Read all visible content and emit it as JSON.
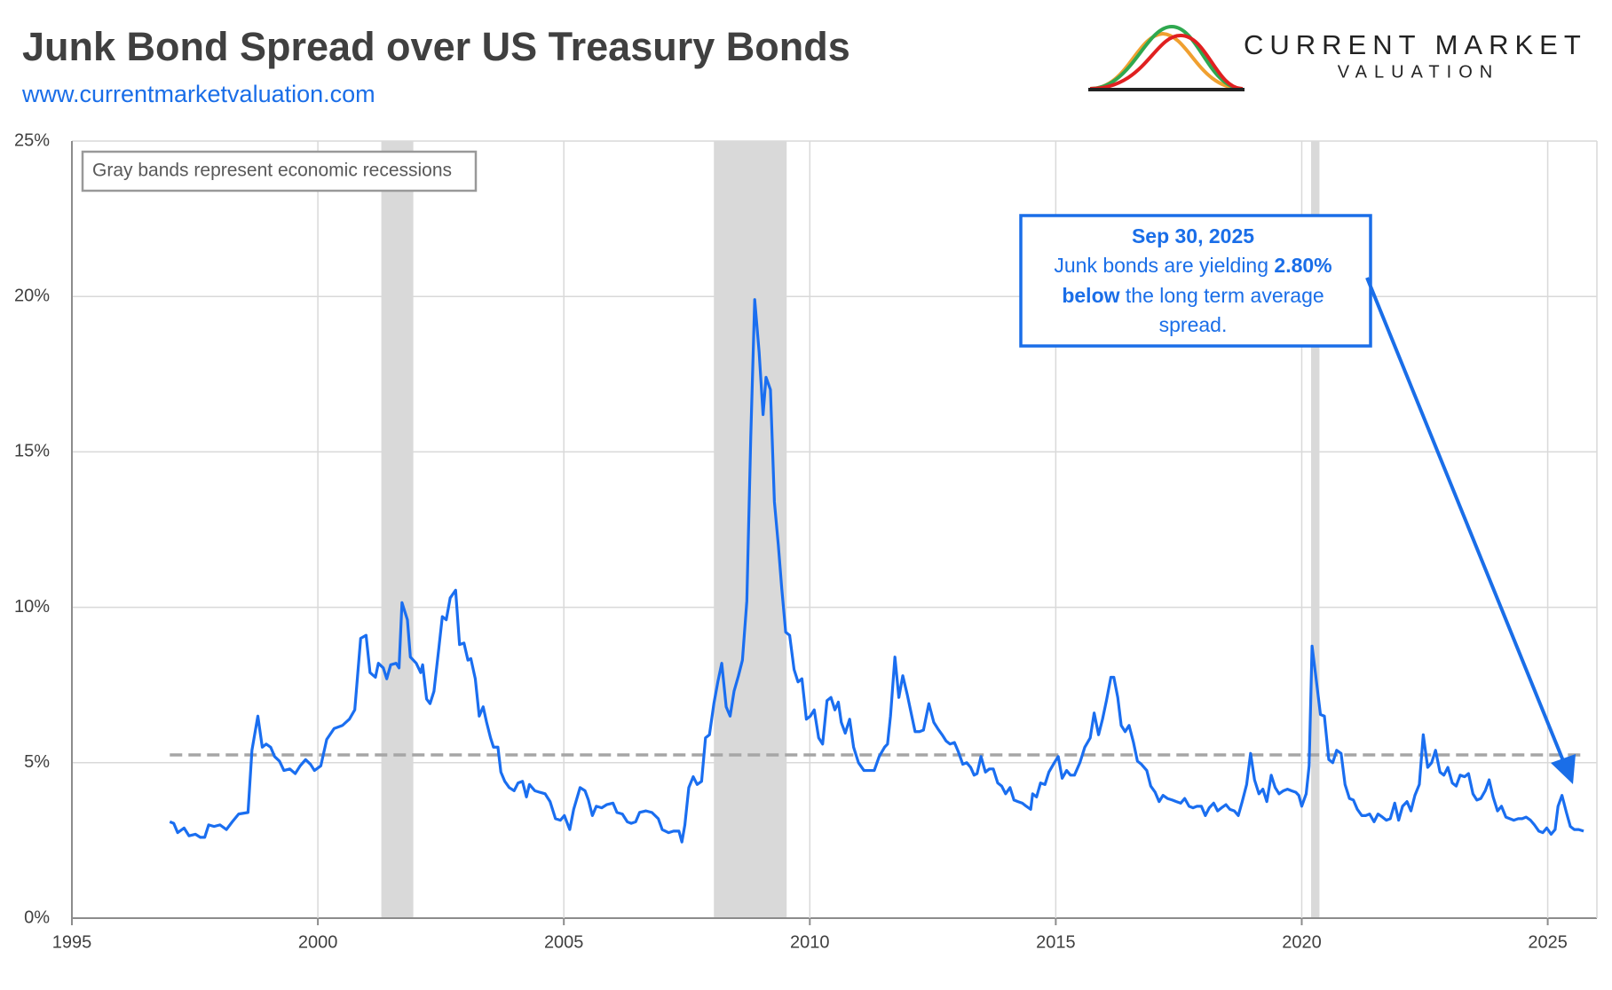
{
  "chart_data": {
    "type": "line",
    "title": "Junk Bond Spread over US Treasury Bonds",
    "subtitle": "www.currentmarketvaluation.com",
    "note": "Gray bands represent economic recessions",
    "annotation": {
      "date": "Sep 30, 2025",
      "text1": "Junk bonds are yielding",
      "value_text": "2.80%",
      "bold_text": "below",
      "text2": "the long term average",
      "text3": "spread."
    },
    "color": "#1a6ef0",
    "x": [
      1996.99,
      1997.07,
      1997.15,
      1997.28,
      1997.38,
      1997.51,
      1997.61,
      1997.7,
      1997.78,
      1997.89,
      1998.01,
      1998.14,
      1998.26,
      1998.39,
      1998.58,
      1998.66,
      1998.78,
      1998.87,
      1998.95,
      1999.04,
      1999.12,
      1999.22,
      1999.31,
      1999.43,
      1999.54,
      1999.64,
      1999.75,
      1999.85,
      1999.93,
      2000.06,
      2000.18,
      2000.33,
      2000.5,
      2000.64,
      2000.75,
      2000.87,
      2000.98,
      2001.06,
      2001.17,
      2001.23,
      2001.33,
      2001.4,
      2001.48,
      2001.59,
      2001.65,
      2001.71,
      2001.82,
      2001.88,
      2002.0,
      2002.09,
      2002.13,
      2002.21,
      2002.28,
      2002.36,
      2002.46,
      2002.53,
      2002.61,
      2002.69,
      2002.8,
      2002.88,
      2002.97,
      2003.05,
      2003.11,
      2003.2,
      2003.28,
      2003.36,
      2003.43,
      2003.51,
      2003.57,
      2003.66,
      2003.72,
      2003.8,
      2003.89,
      2003.99,
      2004.07,
      2004.16,
      2004.24,
      2004.3,
      2004.41,
      2004.51,
      2004.62,
      2004.72,
      2004.83,
      2004.93,
      2005.01,
      2005.12,
      2005.2,
      2005.33,
      2005.43,
      2005.5,
      2005.58,
      2005.66,
      2005.77,
      2005.87,
      2006.0,
      2006.08,
      2006.19,
      2006.29,
      2006.37,
      2006.46,
      2006.54,
      2006.67,
      2006.79,
      2006.92,
      2007.0,
      2007.13,
      2007.23,
      2007.34,
      2007.4,
      2007.46,
      2007.54,
      2007.63,
      2007.71,
      2007.8,
      2007.88,
      2007.96,
      2008.05,
      2008.13,
      2008.21,
      2008.3,
      2008.38,
      2008.46,
      2008.55,
      2008.63,
      2008.72,
      2008.8,
      2008.88,
      2008.97,
      2009.05,
      2009.11,
      2009.2,
      2009.28,
      2009.36,
      2009.43,
      2009.51,
      2009.59,
      2009.68,
      2009.76,
      2009.84,
      2009.93,
      2010.01,
      2010.09,
      2010.18,
      2010.26,
      2010.35,
      2010.43,
      2010.51,
      2010.58,
      2010.64,
      2010.72,
      2010.81,
      2010.89,
      2010.99,
      2011.1,
      2011.2,
      2011.31,
      2011.41,
      2011.52,
      2011.58,
      2011.64,
      2011.73,
      2011.81,
      2011.89,
      2011.98,
      2012.06,
      2012.14,
      2012.23,
      2012.31,
      2012.42,
      2012.52,
      2012.6,
      2012.69,
      2012.77,
      2012.85,
      2012.94,
      2013.02,
      2013.11,
      2013.19,
      2013.27,
      2013.34,
      2013.4,
      2013.48,
      2013.57,
      2013.65,
      2013.73,
      2013.82,
      2013.9,
      2013.98,
      2014.07,
      2014.15,
      2014.23,
      2014.32,
      2014.4,
      2014.49,
      2014.53,
      2014.61,
      2014.69,
      2014.78,
      2014.86,
      2014.97,
      2015.05,
      2015.13,
      2015.22,
      2015.3,
      2015.38,
      2015.49,
      2015.59,
      2015.7,
      2015.78,
      2015.87,
      2015.95,
      2016.03,
      2016.12,
      2016.18,
      2016.26,
      2016.33,
      2016.41,
      2016.49,
      2016.58,
      2016.66,
      2016.74,
      2016.85,
      2016.93,
      2017.02,
      2017.1,
      2017.18,
      2017.27,
      2017.37,
      2017.45,
      2017.54,
      2017.62,
      2017.71,
      2017.79,
      2017.87,
      2017.96,
      2018.04,
      2018.12,
      2018.21,
      2018.29,
      2018.37,
      2018.46,
      2018.54,
      2018.63,
      2018.71,
      2018.79,
      2018.88,
      2018.96,
      2019.04,
      2019.13,
      2019.21,
      2019.29,
      2019.38,
      2019.46,
      2019.54,
      2019.63,
      2019.71,
      2019.79,
      2019.88,
      2019.94,
      2020.0,
      2020.09,
      2020.15,
      2020.21,
      2020.3,
      2020.38,
      2020.46,
      2020.55,
      2020.63,
      2020.71,
      2020.8,
      2020.88,
      2020.97,
      2021.05,
      2021.13,
      2021.22,
      2021.3,
      2021.38,
      2021.47,
      2021.55,
      2021.64,
      2021.72,
      2021.8,
      2021.89,
      2021.97,
      2022.05,
      2022.14,
      2022.22,
      2022.3,
      2022.39,
      2022.47,
      2022.56,
      2022.64,
      2022.72,
      2022.81,
      2022.89,
      2022.97,
      2023.06,
      2023.14,
      2023.22,
      2023.31,
      2023.39,
      2023.48,
      2023.56,
      2023.64,
      2023.73,
      2023.81,
      2023.89,
      2023.98,
      2024.06,
      2024.15,
      2024.23,
      2024.31,
      2024.4,
      2024.48,
      2024.56,
      2024.65,
      2024.73,
      2024.82,
      2024.9,
      2024.98,
      2025.07,
      2025.15,
      2025.21,
      2025.29,
      2025.38,
      2025.46,
      2025.54,
      2025.63,
      2025.73
    ],
    "values": [
      3.1,
      3.05,
      2.75,
      2.9,
      2.65,
      2.7,
      2.6,
      2.6,
      3.0,
      2.95,
      3.0,
      2.85,
      3.1,
      3.35,
      3.4,
      5.4,
      6.5,
      5.5,
      5.6,
      5.5,
      5.2,
      5.05,
      4.75,
      4.8,
      4.65,
      4.9,
      5.1,
      4.95,
      4.75,
      4.9,
      5.75,
      6.1,
      6.2,
      6.4,
      6.7,
      9.0,
      9.1,
      7.9,
      7.75,
      8.2,
      8.05,
      7.7,
      8.15,
      8.2,
      8.05,
      10.15,
      9.6,
      8.4,
      8.2,
      7.9,
      8.15,
      7.05,
      6.9,
      7.3,
      8.7,
      9.7,
      9.6,
      10.3,
      10.55,
      8.8,
      8.85,
      8.3,
      8.35,
      7.7,
      6.5,
      6.8,
      6.3,
      5.8,
      5.5,
      5.5,
      4.7,
      4.4,
      4.2,
      4.1,
      4.35,
      4.4,
      3.9,
      4.3,
      4.1,
      4.05,
      4.0,
      3.75,
      3.2,
      3.15,
      3.3,
      2.85,
      3.5,
      4.2,
      4.1,
      3.8,
      3.3,
      3.6,
      3.55,
      3.65,
      3.7,
      3.4,
      3.35,
      3.1,
      3.05,
      3.1,
      3.4,
      3.45,
      3.4,
      3.2,
      2.85,
      2.75,
      2.8,
      2.8,
      2.45,
      3.0,
      4.2,
      4.55,
      4.3,
      4.4,
      5.8,
      5.9,
      6.9,
      7.6,
      8.2,
      6.8,
      6.5,
      7.3,
      7.8,
      8.3,
      10.2,
      15.5,
      19.9,
      18.2,
      16.2,
      17.4,
      17.0,
      13.4,
      12.0,
      10.6,
      9.2,
      9.1,
      8.0,
      7.6,
      7.7,
      6.4,
      6.5,
      6.7,
      5.8,
      5.6,
      7.0,
      7.1,
      6.7,
      6.95,
      6.3,
      5.95,
      6.4,
      5.5,
      5.0,
      4.75,
      4.75,
      4.75,
      5.2,
      5.5,
      5.6,
      6.5,
      8.4,
      7.1,
      7.8,
      7.2,
      6.6,
      6.0,
      6.0,
      6.05,
      6.9,
      6.3,
      6.1,
      5.9,
      5.7,
      5.6,
      5.65,
      5.35,
      4.95,
      5.0,
      4.85,
      4.6,
      4.65,
      5.2,
      4.7,
      4.8,
      4.8,
      4.35,
      4.25,
      4.0,
      4.2,
      3.8,
      3.75,
      3.7,
      3.6,
      3.5,
      4.0,
      3.9,
      4.35,
      4.3,
      4.7,
      5.0,
      5.2,
      4.5,
      4.75,
      4.6,
      4.6,
      5.0,
      5.5,
      5.8,
      6.6,
      5.9,
      6.4,
      7.0,
      7.75,
      7.75,
      7.1,
      6.2,
      6.0,
      6.2,
      5.65,
      5.05,
      4.95,
      4.75,
      4.25,
      4.05,
      3.75,
      3.95,
      3.85,
      3.8,
      3.75,
      3.7,
      3.85,
      3.6,
      3.55,
      3.6,
      3.6,
      3.3,
      3.55,
      3.7,
      3.45,
      3.55,
      3.65,
      3.5,
      3.45,
      3.3,
      3.75,
      4.3,
      5.3,
      4.45,
      4.0,
      4.15,
      3.75,
      4.6,
      4.2,
      4.0,
      4.1,
      4.15,
      4.1,
      4.05,
      3.95,
      3.6,
      4.0,
      4.9,
      8.75,
      7.6,
      6.55,
      6.5,
      5.1,
      5.0,
      5.4,
      5.3,
      4.3,
      3.85,
      3.8,
      3.5,
      3.3,
      3.3,
      3.35,
      3.1,
      3.35,
      3.25,
      3.15,
      3.2,
      3.7,
      3.15,
      3.6,
      3.75,
      3.45,
      3.95,
      4.3,
      5.9,
      4.85,
      5.0,
      5.4,
      4.7,
      4.6,
      4.85,
      4.35,
      4.25,
      4.6,
      4.55,
      4.65,
      4.0,
      3.8,
      3.85,
      4.1,
      4.45,
      3.9,
      3.45,
      3.6,
      3.25,
      3.2,
      3.15,
      3.2,
      3.2,
      3.25,
      3.15,
      3.0,
      2.8,
      2.75,
      2.9,
      2.7,
      2.85,
      3.6,
      3.95,
      3.4,
      2.95,
      2.85,
      2.85,
      2.8
    ],
    "average": 5.25,
    "recessions": [
      [
        2001.29,
        2001.94
      ],
      [
        2008.05,
        2009.53
      ],
      [
        2020.19,
        2020.36
      ]
    ],
    "xlim": [
      1995,
      2026
    ],
    "xticks": [
      1995,
      2000,
      2005,
      2010,
      2015,
      2020,
      2025
    ],
    "ylim": [
      0,
      25
    ],
    "yticks": [
      {
        "value": 0,
        "label": "0%"
      },
      {
        "value": 5,
        "label": "5%"
      },
      {
        "value": 10,
        "label": "10%"
      },
      {
        "value": 15,
        "label": "15%"
      },
      {
        "value": 20,
        "label": "20%"
      },
      {
        "value": 25,
        "label": "25%"
      }
    ],
    "grid": true
  },
  "logo": {
    "line1": "CURRENT MARKET",
    "line2": "VALUATION"
  }
}
